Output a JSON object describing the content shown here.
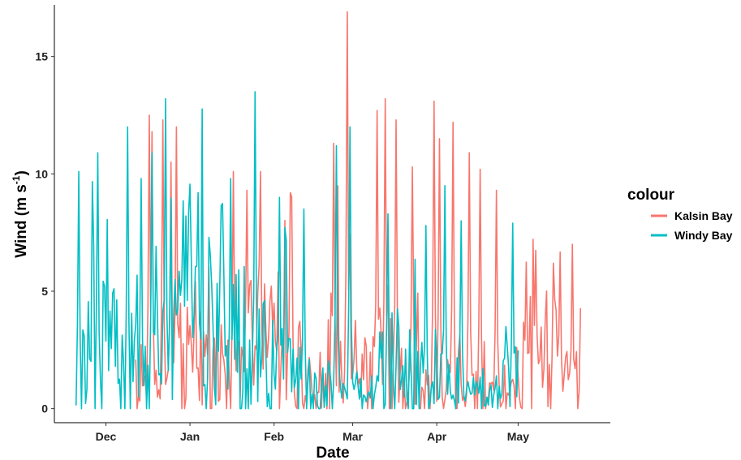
{
  "chart_data": {
    "type": "line",
    "title": "",
    "xlabel": "Date",
    "ylabel": "Wind (m s",
    "ylabel_sup": "-1",
    "ylabel_close": ")",
    "ylim": [
      -0.6,
      17.2
    ],
    "yticks": [
      0,
      5,
      10,
      15
    ],
    "x_range_days": [
      -19,
      186
    ],
    "x_ticks": [
      {
        "label": "Dec",
        "day": 0
      },
      {
        "label": "Jan",
        "day": 31
      },
      {
        "label": "Feb",
        "day": 62
      },
      {
        "label": "Mar",
        "day": 91
      },
      {
        "label": "Apr",
        "day": 122
      },
      {
        "label": "May",
        "day": 152
      }
    ],
    "legend": {
      "title": "colour",
      "position": "right",
      "entries": [
        {
          "name": "Kalsin Bay",
          "color": "#F8766D"
        },
        {
          "name": "Windy Bay",
          "color": "#00BFC4"
        }
      ]
    },
    "series": [
      {
        "name": "Kalsin Bay",
        "color": "#F8766D",
        "x_start_day": 11,
        "x_end_day": 175,
        "points_per_day": 2,
        "peaks": [
          {
            "day": 16,
            "value": 12.5
          },
          {
            "day": 17,
            "value": 11.8
          },
          {
            "day": 21,
            "value": 12.3
          },
          {
            "day": 24,
            "value": 10.5
          },
          {
            "day": 26,
            "value": 12.0
          },
          {
            "day": 47,
            "value": 10.1
          },
          {
            "day": 52,
            "value": 9.3
          },
          {
            "day": 57,
            "value": 10.1
          },
          {
            "day": 68,
            "value": 9.2
          },
          {
            "day": 84,
            "value": 11.3
          },
          {
            "day": 89,
            "value": 16.9
          },
          {
            "day": 100,
            "value": 12.7
          },
          {
            "day": 103,
            "value": 13.2
          },
          {
            "day": 107,
            "value": 12.3
          },
          {
            "day": 113,
            "value": 10.3
          },
          {
            "day": 121,
            "value": 13.1
          },
          {
            "day": 123,
            "value": 11.5
          },
          {
            "day": 128,
            "value": 12.2
          },
          {
            "day": 134,
            "value": 10.9
          },
          {
            "day": 138,
            "value": 10.2
          },
          {
            "day": 144,
            "value": 9.3
          },
          {
            "day": 165,
            "value": 6.2
          },
          {
            "day": 172,
            "value": 7.0
          }
        ]
      },
      {
        "name": "Windy Bay",
        "color": "#00BFC4",
        "x_start_day": -11,
        "x_end_day": 152,
        "points_per_day": 2,
        "peaks": [
          {
            "day": -10,
            "value": 10.1
          },
          {
            "day": -3,
            "value": 10.9
          },
          {
            "day": 8,
            "value": 12.0
          },
          {
            "day": 13,
            "value": 9.8
          },
          {
            "day": 17,
            "value": 10.9
          },
          {
            "day": 22,
            "value": 13.2
          },
          {
            "day": 34,
            "value": 9.2
          },
          {
            "day": 46,
            "value": 9.8
          },
          {
            "day": 55,
            "value": 13.5
          },
          {
            "day": 64,
            "value": 9.0
          },
          {
            "day": 73,
            "value": 8.5
          },
          {
            "day": 85,
            "value": 11.2
          },
          {
            "day": 90,
            "value": 12.0
          },
          {
            "day": 104,
            "value": 8.3
          },
          {
            "day": 118,
            "value": 7.8
          },
          {
            "day": 125,
            "value": 9.5
          },
          {
            "day": 131,
            "value": 8.0
          },
          {
            "day": 150,
            "value": 7.9
          }
        ]
      }
    ]
  }
}
